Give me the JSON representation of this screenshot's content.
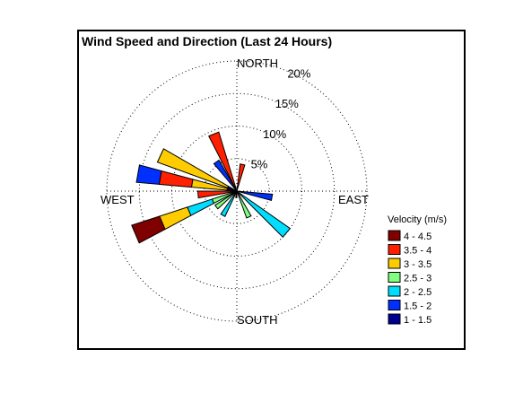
{
  "chart_data": {
    "type": "wind-rose",
    "title": "Wind Speed and Direction (Last 24 Hours)",
    "directions": {
      "north": "NORTH",
      "south": "SOUTH",
      "east": "EAST",
      "west": "WEST"
    },
    "radial_ticks": [
      {
        "value": 5,
        "label": "5%"
      },
      {
        "value": 10,
        "label": "10%"
      },
      {
        "value": 15,
        "label": "15%"
      },
      {
        "value": 20,
        "label": "20%"
      }
    ],
    "radial_max": 20,
    "legend": {
      "title": "Velocity (m/s)",
      "position": "right",
      "bins": [
        {
          "label": "4 - 4.5",
          "color": "#800000"
        },
        {
          "label": "3.5 - 4",
          "color": "#ff2000"
        },
        {
          "label": "3 - 3.5",
          "color": "#ffcc00"
        },
        {
          "label": "2.5 - 3",
          "color": "#80ff80"
        },
        {
          "label": "2 - 2.5",
          "color": "#00ddff"
        },
        {
          "label": "1.5 - 2",
          "color": "#0030ff"
        },
        {
          "label": "1 - 1.5",
          "color": "#000090"
        }
      ]
    },
    "petals": [
      {
        "direction_deg": 12,
        "segments": [
          {
            "bin": "3.5 - 4",
            "percent": 4.2
          }
        ]
      },
      {
        "direction_deg": 338,
        "segments": [
          {
            "bin": "3.5 - 4",
            "percent": 9.5
          }
        ]
      },
      {
        "direction_deg": 325,
        "segments": [
          {
            "bin": "1.5 - 2",
            "percent": 5.5
          }
        ]
      },
      {
        "direction_deg": 295,
        "segments": [
          {
            "bin": "1 - 1.5",
            "percent": 1.5
          },
          {
            "bin": "3 - 3.5",
            "percent": 11.5
          }
        ]
      },
      {
        "direction_deg": 280,
        "segments": [
          {
            "bin": "1 - 1.5",
            "percent": 1.5
          },
          {
            "bin": "3 - 3.5",
            "percent": 5.5
          },
          {
            "bin": "3.5 - 4",
            "percent": 5.0
          },
          {
            "bin": "1.5 - 2",
            "percent": 3.5
          }
        ]
      },
      {
        "direction_deg": 265,
        "segments": [
          {
            "bin": "1 - 1.5",
            "percent": 1.0
          },
          {
            "bin": "3.5 - 4",
            "percent": 5.0
          }
        ]
      },
      {
        "direction_deg": 247,
        "segments": [
          {
            "bin": "2.5 - 3",
            "percent": 4.0
          },
          {
            "bin": "2 - 2.5",
            "percent": 4.0
          },
          {
            "bin": "3 - 3.5",
            "percent": 4.5
          },
          {
            "bin": "4 - 4.5",
            "percent": 4.5
          }
        ]
      },
      {
        "direction_deg": 232,
        "segments": [
          {
            "bin": "2.5 - 3",
            "percent": 4.0
          }
        ]
      },
      {
        "direction_deg": 210,
        "segments": [
          {
            "bin": "2 - 2.5",
            "percent": 4.3
          }
        ]
      },
      {
        "direction_deg": 155,
        "segments": [
          {
            "bin": "2.5 - 3",
            "percent": 4.4
          }
        ]
      },
      {
        "direction_deg": 130,
        "segments": [
          {
            "bin": "2 - 2.5",
            "percent": 10.0
          }
        ]
      },
      {
        "direction_deg": 100,
        "segments": [
          {
            "bin": "1.5 - 2",
            "percent": 5.5
          }
        ]
      },
      {
        "direction_deg": 185,
        "segments": [
          {
            "bin": "1 - 1.5",
            "percent": 1.0
          }
        ]
      }
    ]
  }
}
